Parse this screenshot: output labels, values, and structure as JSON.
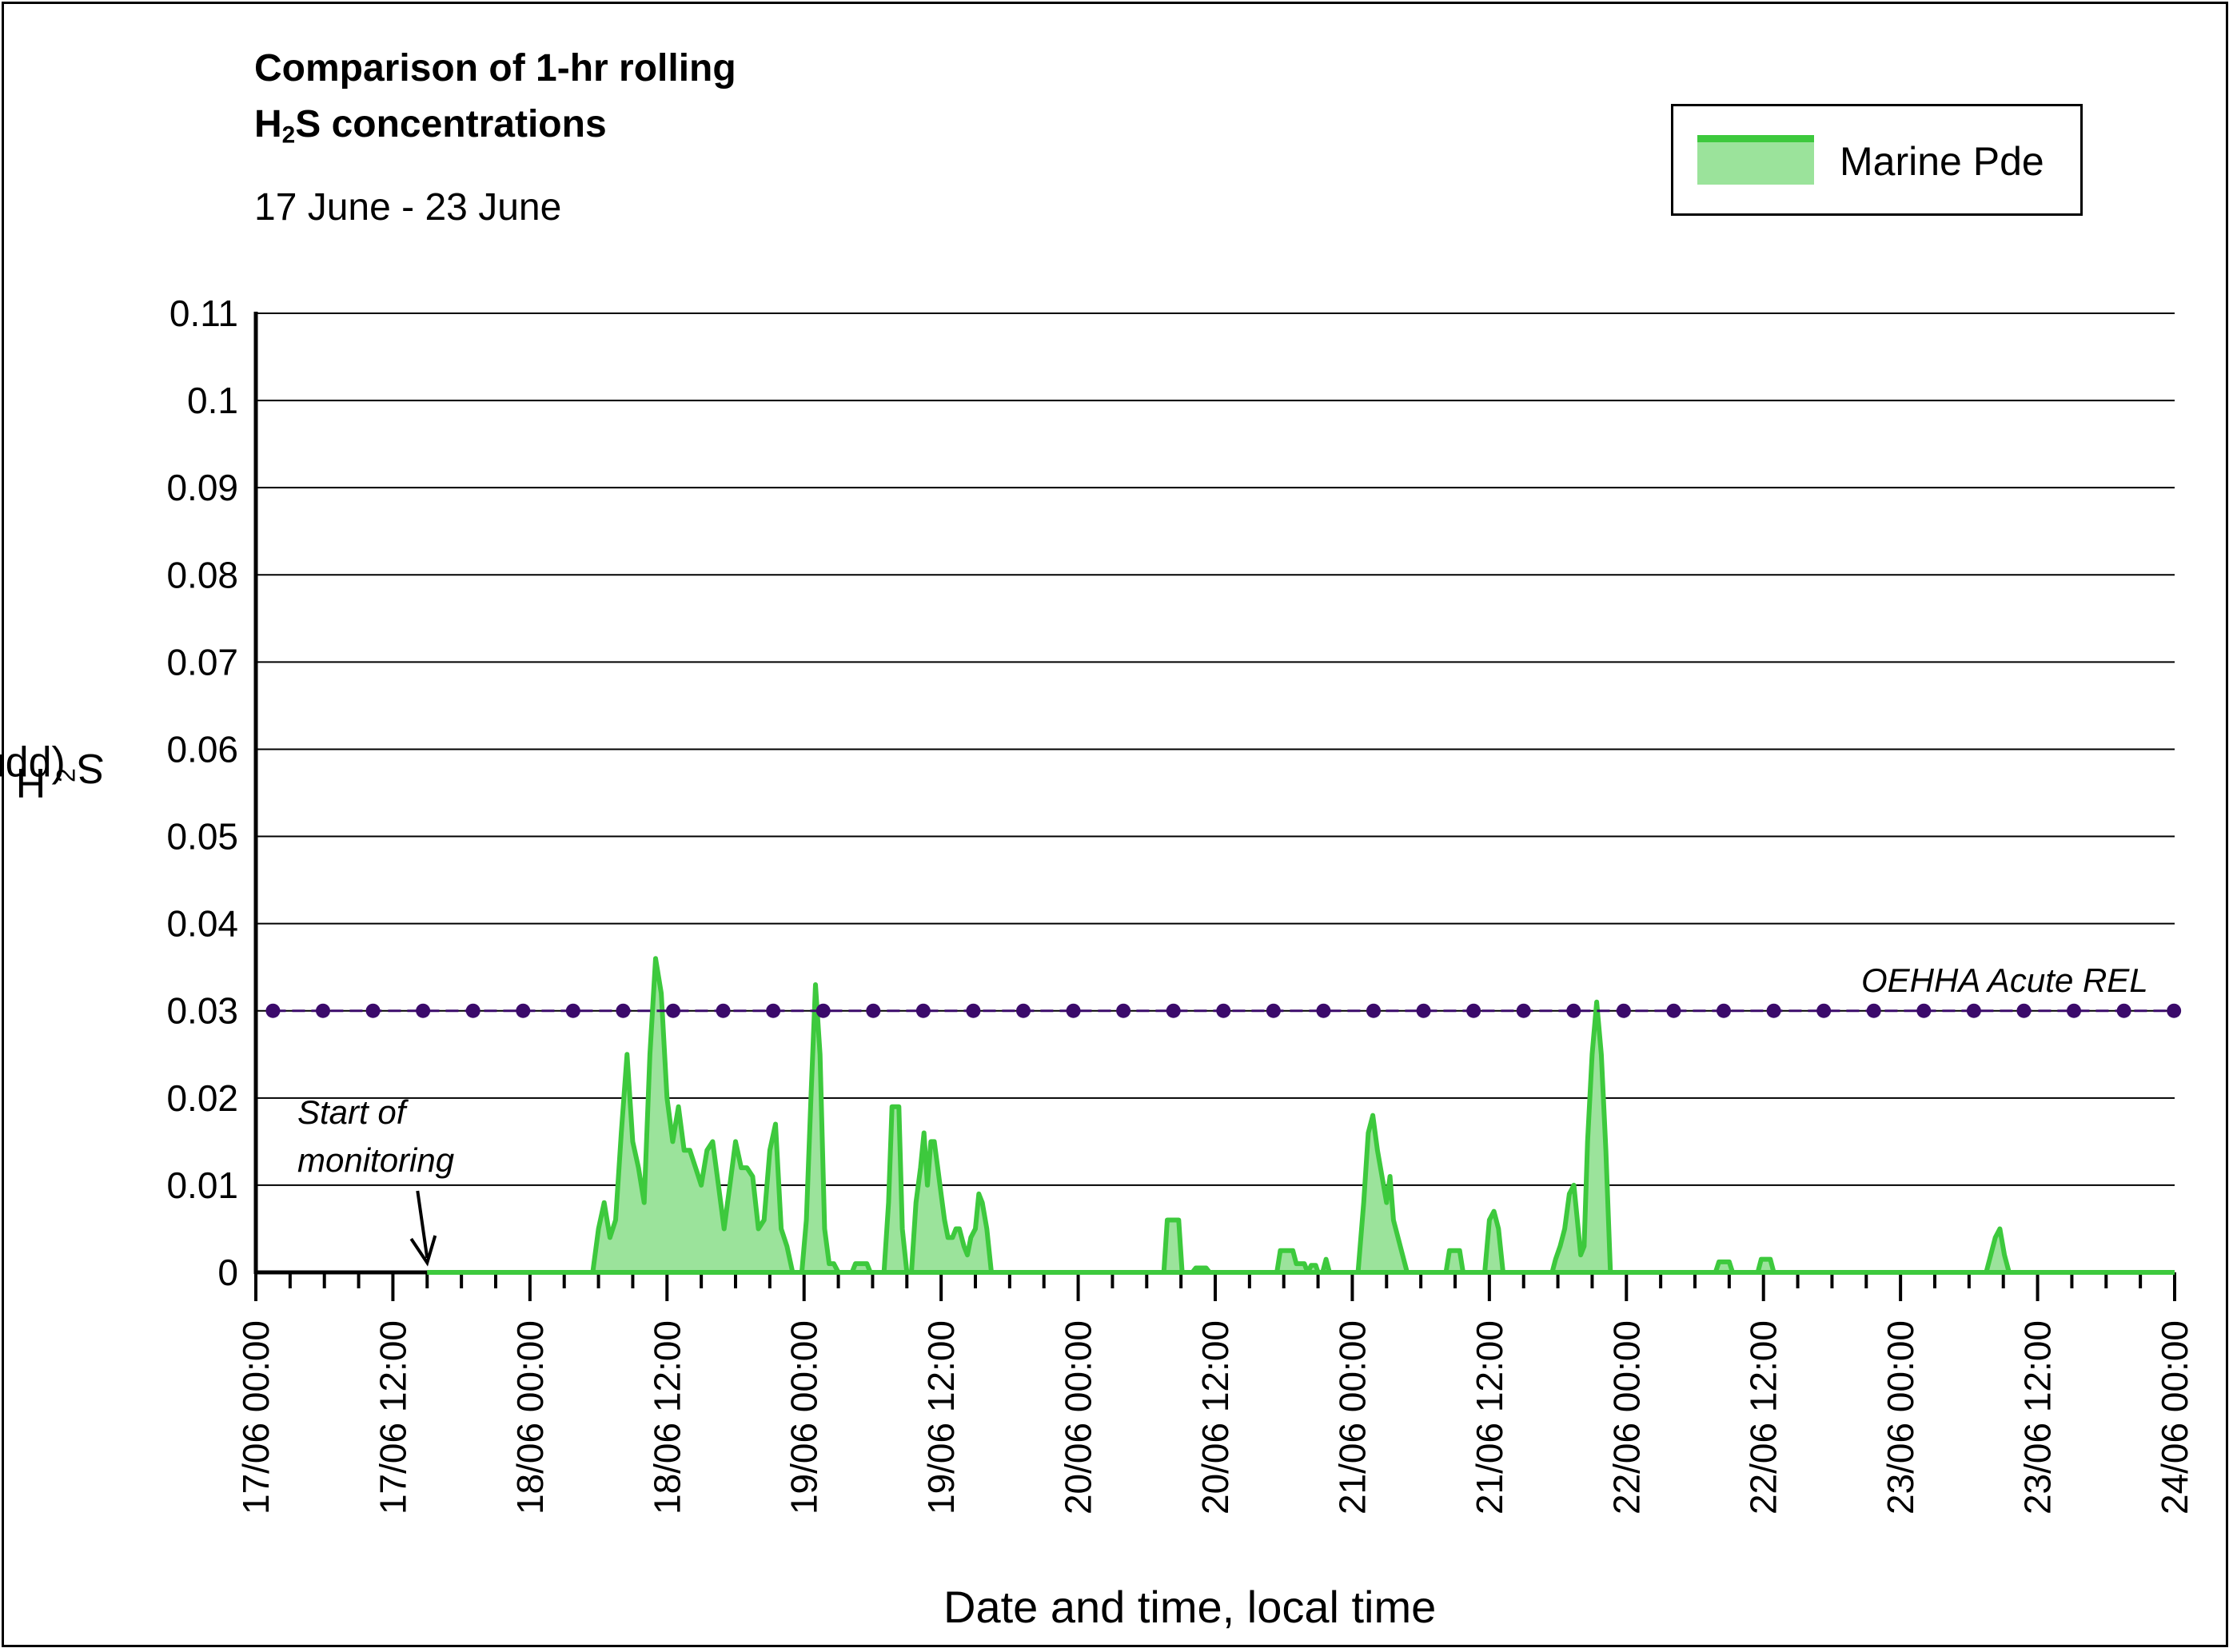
{
  "chart_data": {
    "type": "area",
    "title_line1": "Comparison of 1-hr rolling",
    "title_line2_prefix": "H",
    "title_line2_sub": "2",
    "title_line2_suffix": "S concentrations",
    "subtitle": "17 June - 23 June",
    "ylabel_prefix": "H",
    "ylabel_sub": "2",
    "ylabel_suffix": "S (ppm)",
    "xlabel": "Date and time, local time",
    "ylim": [
      0,
      0.11
    ],
    "yticks": [
      0,
      0.01,
      0.02,
      0.03,
      0.04,
      0.05,
      0.06,
      0.07,
      0.08,
      0.09,
      0.1,
      0.11
    ],
    "ytick_labels": [
      "0",
      "0.01",
      "0.02",
      "0.03",
      "0.04",
      "0.05",
      "0.06",
      "0.07",
      "0.08",
      "0.09",
      "0.1",
      "0.11"
    ],
    "xlim_hours": [
      0,
      168
    ],
    "xtick_labels": [
      "17/06 00:00",
      "17/06 12:00",
      "18/06 00:00",
      "18/06 12:00",
      "19/06 00:00",
      "19/06 12:00",
      "20/06 00:00",
      "20/06 12:00",
      "21/06 00:00",
      "21/06 12:00",
      "22/06 00:00",
      "22/06 12:00",
      "23/06 00:00",
      "23/06 12:00",
      "24/06 00:00"
    ],
    "grid": "horizontal",
    "legend_position": "top-right",
    "series": [
      {
        "name": "Marine Pde",
        "color": "#3dc93d",
        "fill": "#9be39b",
        "points": [
          [
            15,
            0
          ],
          [
            29.5,
            0
          ],
          [
            30,
            0.005
          ],
          [
            30.5,
            0.008
          ],
          [
            31,
            0.004
          ],
          [
            31.5,
            0.006
          ],
          [
            32,
            0.016
          ],
          [
            32.5,
            0.025
          ],
          [
            33,
            0.015
          ],
          [
            33.5,
            0.012
          ],
          [
            34,
            0.008
          ],
          [
            34.5,
            0.025
          ],
          [
            35,
            0.036
          ],
          [
            35.5,
            0.032
          ],
          [
            36,
            0.02
          ],
          [
            36.5,
            0.015
          ],
          [
            37,
            0.019
          ],
          [
            37.5,
            0.014
          ],
          [
            38,
            0.014
          ],
          [
            38.5,
            0.012
          ],
          [
            39,
            0.01
          ],
          [
            39.5,
            0.014
          ],
          [
            40,
            0.015
          ],
          [
            40.5,
            0.01
          ],
          [
            41,
            0.005
          ],
          [
            41.5,
            0.01
          ],
          [
            42,
            0.015
          ],
          [
            42.5,
            0.012
          ],
          [
            43,
            0.012
          ],
          [
            43.5,
            0.011
          ],
          [
            44,
            0.005
          ],
          [
            44.5,
            0.006
          ],
          [
            45,
            0.014
          ],
          [
            45.5,
            0.017
          ],
          [
            46,
            0.005
          ],
          [
            46.5,
            0.003
          ],
          [
            47,
            0
          ],
          [
            47.8,
            0
          ],
          [
            48.2,
            0.006
          ],
          [
            48.6,
            0.02
          ],
          [
            49,
            0.033
          ],
          [
            49.4,
            0.025
          ],
          [
            49.8,
            0.005
          ],
          [
            50.2,
            0.001
          ],
          [
            50.6,
            0.001
          ],
          [
            51,
            0
          ],
          [
            52.2,
            0
          ],
          [
            52.5,
            0.001
          ],
          [
            53.5,
            0.001
          ],
          [
            53.8,
            0
          ],
          [
            55,
            0
          ],
          [
            55.4,
            0.008
          ],
          [
            55.7,
            0.019
          ],
          [
            56.3,
            0.019
          ],
          [
            56.6,
            0.005
          ],
          [
            57,
            0
          ],
          [
            57.4,
            0
          ],
          [
            57.8,
            0.008
          ],
          [
            58.2,
            0.012
          ],
          [
            58.5,
            0.016
          ],
          [
            58.8,
            0.01
          ],
          [
            59.1,
            0.015
          ],
          [
            59.4,
            0.015
          ],
          [
            59.7,
            0.012
          ],
          [
            60,
            0.009
          ],
          [
            60.3,
            0.006
          ],
          [
            60.6,
            0.004
          ],
          [
            61,
            0.004
          ],
          [
            61.3,
            0.005
          ],
          [
            61.6,
            0.005
          ],
          [
            62,
            0.003
          ],
          [
            62.3,
            0.002
          ],
          [
            62.6,
            0.004
          ],
          [
            63,
            0.005
          ],
          [
            63.3,
            0.009
          ],
          [
            63.6,
            0.008
          ],
          [
            64,
            0.005
          ],
          [
            64.4,
            0
          ],
          [
            79.5,
            0
          ],
          [
            79.8,
            0.006
          ],
          [
            80.8,
            0.006
          ],
          [
            81.1,
            0
          ],
          [
            82,
            0
          ],
          [
            82.3,
            0.0005
          ],
          [
            83.2,
            0.0005
          ],
          [
            83.5,
            0
          ],
          [
            89.4,
            0
          ],
          [
            89.7,
            0.0025
          ],
          [
            90.8,
            0.0025
          ],
          [
            91.1,
            0.001
          ],
          [
            91.8,
            0.001
          ],
          [
            92.1,
            0
          ],
          [
            92.4,
            0.0008
          ],
          [
            92.8,
            0.0008
          ],
          [
            93,
            0
          ],
          [
            93.4,
            0
          ],
          [
            93.7,
            0.0015
          ],
          [
            94,
            0
          ],
          [
            96.5,
            0
          ],
          [
            97,
            0.008
          ],
          [
            97.4,
            0.016
          ],
          [
            97.8,
            0.018
          ],
          [
            98.2,
            0.014
          ],
          [
            98.6,
            0.011
          ],
          [
            99,
            0.008
          ],
          [
            99.3,
            0.011
          ],
          [
            99.6,
            0.006
          ],
          [
            100,
            0.004
          ],
          [
            100.4,
            0.002
          ],
          [
            100.8,
            0
          ],
          [
            104.2,
            0
          ],
          [
            104.5,
            0.0025
          ],
          [
            105.4,
            0.0025
          ],
          [
            105.7,
            0
          ],
          [
            107.6,
            0
          ],
          [
            108,
            0.006
          ],
          [
            108.4,
            0.007
          ],
          [
            108.8,
            0.005
          ],
          [
            109.2,
            0
          ],
          [
            113.5,
            0
          ],
          [
            113.8,
            0.0015
          ],
          [
            114.2,
            0.003
          ],
          [
            114.6,
            0.005
          ],
          [
            115,
            0.009
          ],
          [
            115.4,
            0.01
          ],
          [
            115.7,
            0.006
          ],
          [
            116,
            0.002
          ],
          [
            116.3,
            0.003
          ],
          [
            116.6,
            0.015
          ],
          [
            117,
            0.025
          ],
          [
            117.4,
            0.031
          ],
          [
            117.8,
            0.025
          ],
          [
            118.2,
            0.014
          ],
          [
            118.6,
            0
          ],
          [
            127.8,
            0
          ],
          [
            128.1,
            0.0012
          ],
          [
            129,
            0.0012
          ],
          [
            129.3,
            0
          ],
          [
            131.5,
            0
          ],
          [
            131.8,
            0.0015
          ],
          [
            132.6,
            0.0015
          ],
          [
            132.9,
            0
          ],
          [
            151.5,
            0
          ],
          [
            151.9,
            0.002
          ],
          [
            152.3,
            0.004
          ],
          [
            152.7,
            0.005
          ],
          [
            153.1,
            0.002
          ],
          [
            153.5,
            0
          ],
          [
            168,
            0
          ]
        ]
      },
      {
        "name": "OEHHA Acute REL",
        "color": "#3b0a6b",
        "value": 0.03,
        "marker_hours": [
          1.5,
          5.88,
          10.26,
          14.64,
          19.02,
          23.4,
          27.78,
          32.16,
          36.54,
          40.92,
          45.3,
          49.68,
          54.06,
          58.44,
          62.82,
          67.2,
          71.58,
          75.96,
          80.34,
          84.72,
          89.1,
          93.48,
          97.86,
          102.24,
          106.62,
          111,
          115.38,
          119.76,
          124.14,
          128.52,
          132.9,
          137.28,
          141.66,
          146.04,
          150.42,
          154.8,
          159.18,
          163.56,
          167.94
        ]
      }
    ],
    "annotations": [
      {
        "text_line1": "Start of",
        "text_line2": "monitoring",
        "at_hour": 15
      },
      {
        "text": "OEHHA Acute REL"
      }
    ]
  }
}
